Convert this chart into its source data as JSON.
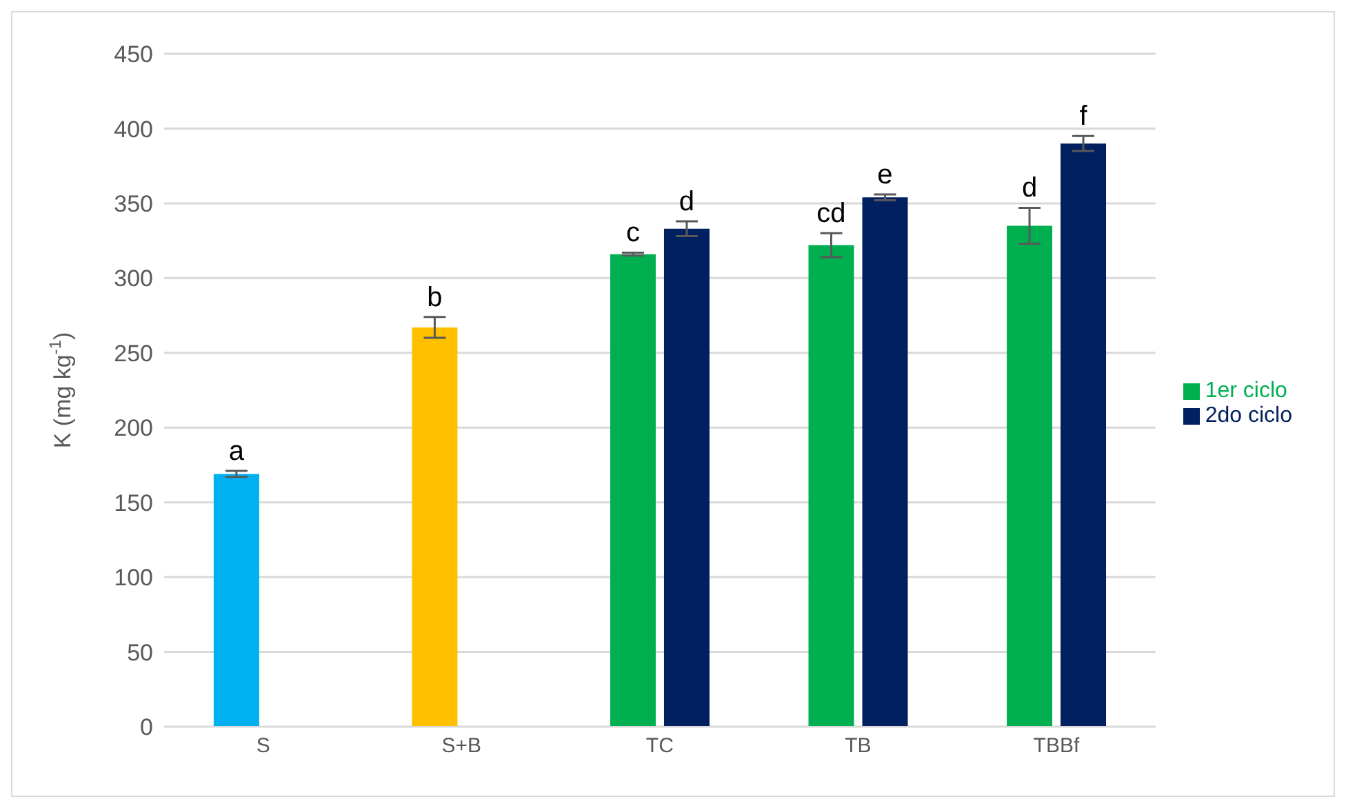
{
  "chart_data": {
    "type": "bar",
    "ylabel": "K (mg kg$^{-1}$)",
    "categories": [
      "S",
      "S+B",
      "TC",
      "TB",
      "TBBf"
    ],
    "series": [
      {
        "name": "1er ciclo",
        "color": "#00b050",
        "colors": [
          "#00b0f0",
          "#ffc000",
          "#00b050",
          "#00b050",
          "#00b050"
        ],
        "values": [
          169,
          267,
          316,
          322,
          335
        ],
        "errors": [
          2,
          7,
          1,
          8,
          12
        ],
        "value_labels": [
          "a",
          "b",
          "c",
          "cd",
          "d"
        ]
      },
      {
        "name": "2do ciclo",
        "color": "#002060",
        "values": [
          null,
          null,
          333,
          354,
          390
        ],
        "errors": [
          null,
          null,
          5,
          2,
          5
        ],
        "value_labels": [
          null,
          null,
          "d",
          "e",
          "f"
        ]
      }
    ],
    "ylim": [
      0,
      450
    ],
    "yticks": [
      0,
      50,
      100,
      150,
      200,
      250,
      300,
      350,
      400,
      450
    ],
    "grid": "y",
    "legend": "right"
  }
}
